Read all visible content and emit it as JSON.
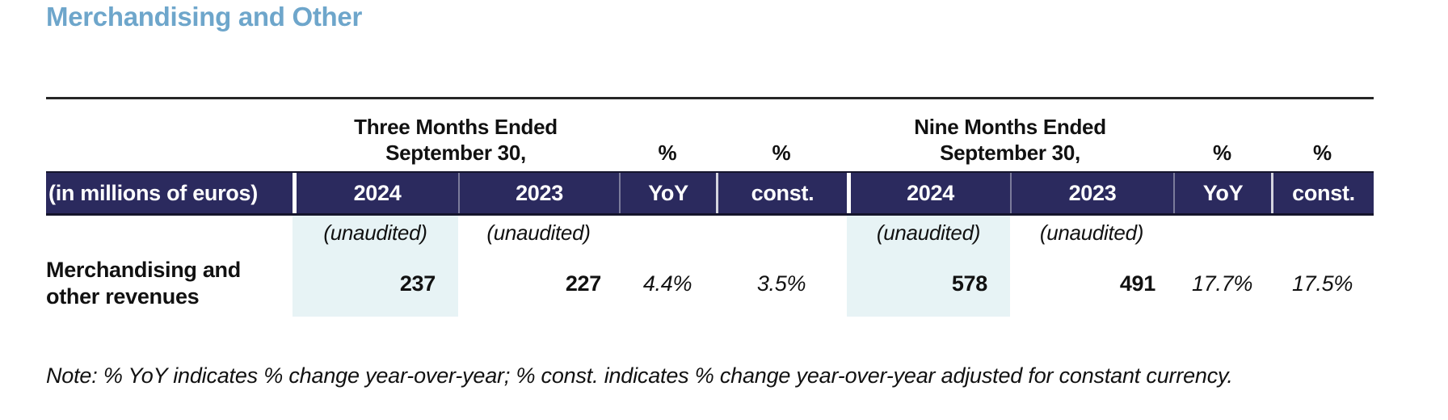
{
  "title": "Merchandising and Other",
  "colors": {
    "accent": "#6EA6CB",
    "header_bg": "#2B2A5E",
    "highlight": "#E7F3F5"
  },
  "table": {
    "groups": {
      "three_months": {
        "line1": "Three Months Ended",
        "line2": "September 30,"
      },
      "nine_months": {
        "line1": "Nine Months Ended",
        "line2": "September 30,"
      },
      "pct_yoy_3m": "%",
      "pct_const_3m": "%",
      "pct_yoy_9m": "%",
      "pct_const_9m": "%"
    },
    "columns": {
      "label": "(in millions of euros)",
      "tm_2024": "2024",
      "tm_2023": "2023",
      "tm_yoy": "YoY",
      "tm_const": "const.",
      "nm_2024": "2024",
      "nm_2023": "2023",
      "nm_yoy": "YoY",
      "nm_const": "const."
    },
    "unaudited": {
      "tm_2024": "(unaudited)",
      "tm_2023": "(unaudited)",
      "nm_2024": "(unaudited)",
      "nm_2023": "(unaudited)"
    },
    "rows": [
      {
        "label": "Merchandising and other revenues",
        "tm_2024": "237",
        "tm_2023": "227",
        "tm_yoy": "4.4%",
        "tm_const": "3.5%",
        "nm_2024": "578",
        "nm_2023": "491",
        "nm_yoy": "17.7%",
        "nm_const": "17.5%"
      }
    ]
  },
  "note": "Note: % YoY indicates % change year-over-year; % const. indicates % change year-over-year adjusted for constant currency."
}
